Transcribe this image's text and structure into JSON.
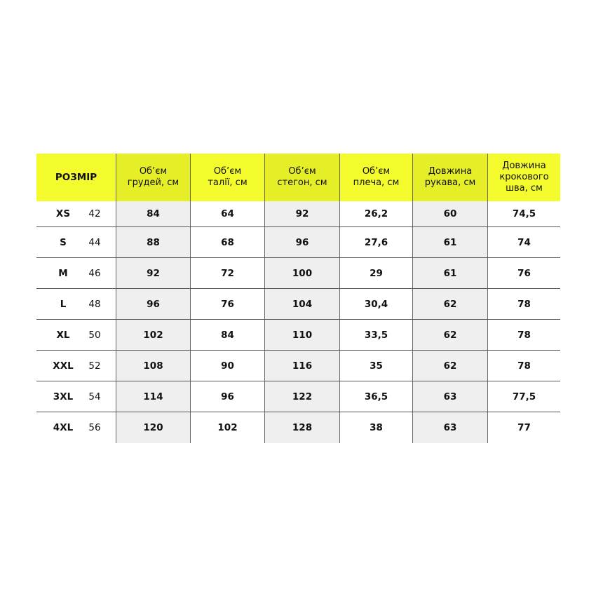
{
  "colors": {
    "header": "#f4fb2c",
    "header_shaded": "#e6ee28",
    "body_shaded": "#efefef"
  },
  "headers": [
    "РОЗМІР",
    "Об’єм\nгрудей, см",
    "Об’єм\nталії, см",
    "Об’єм\nстегон, см",
    "Об’єм\nплеча, см",
    "Довжина\nрукава, см",
    "Довжина\nкрокового\nшва, см"
  ],
  "rows": [
    {
      "size": "XS",
      "num": "42",
      "values": [
        "84",
        "64",
        "92",
        "26,2",
        "60",
        "74,5"
      ]
    },
    {
      "size": "S",
      "num": "44",
      "values": [
        "88",
        "68",
        "96",
        "27,6",
        "61",
        "74"
      ]
    },
    {
      "size": "M",
      "num": "46",
      "values": [
        "92",
        "72",
        "100",
        "29",
        "61",
        "76"
      ]
    },
    {
      "size": "L",
      "num": "48",
      "values": [
        "96",
        "76",
        "104",
        "30,4",
        "62",
        "78"
      ]
    },
    {
      "size": "XL",
      "num": "50",
      "values": [
        "102",
        "84",
        "110",
        "33,5",
        "62",
        "78"
      ]
    },
    {
      "size": "XXL",
      "num": "52",
      "values": [
        "108",
        "90",
        "116",
        "35",
        "62",
        "78"
      ]
    },
    {
      "size": "3XL",
      "num": "54",
      "values": [
        "114",
        "96",
        "122",
        "36,5",
        "63",
        "77,5"
      ]
    },
    {
      "size": "4XL",
      "num": "56",
      "values": [
        "120",
        "102",
        "128",
        "38",
        "63",
        "77"
      ]
    }
  ]
}
